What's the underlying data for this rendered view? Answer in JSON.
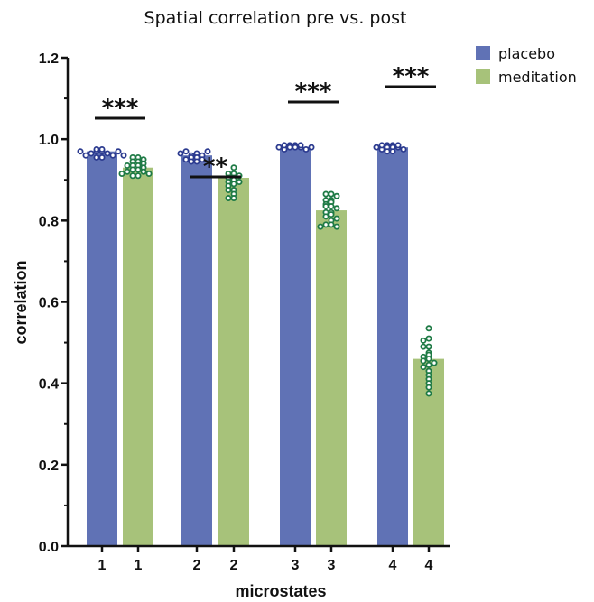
{
  "chart_data": {
    "type": "bar",
    "title": "Spatial correlation pre vs. post",
    "xlabel": "microstates",
    "ylabel": "correlation",
    "ylim": [
      0,
      1.2
    ],
    "yticks": [
      "0.0",
      "0.2",
      "0.4",
      "0.6",
      "0.8",
      "1.0",
      "1.2"
    ],
    "categories": [
      "1",
      "2",
      "3",
      "4"
    ],
    "series": [
      {
        "name": "placebo",
        "color": "#6072b5",
        "point_color": "#2b3a8f",
        "values": [
          0.97,
          0.96,
          0.98,
          0.98
        ],
        "points": [
          [
            0.97,
            0.97,
            0.965,
            0.965,
            0.96,
            0.96,
            0.97,
            0.97,
            0.975,
            0.975,
            0.955,
            0.955,
            0.96
          ],
          [
            0.965,
            0.96,
            0.96,
            0.955,
            0.955,
            0.95,
            0.95,
            0.97,
            0.97,
            0.965,
            0.945,
            0.945
          ],
          [
            0.985,
            0.985,
            0.98,
            0.98,
            0.98,
            0.975,
            0.975,
            0.985,
            0.985,
            0.98,
            0.98
          ],
          [
            0.985,
            0.985,
            0.98,
            0.98,
            0.98,
            0.975,
            0.975,
            0.985,
            0.985,
            0.98,
            0.97,
            0.97
          ]
        ]
      },
      {
        "name": "meditation",
        "color": "#a7c27a",
        "point_color": "#1e7a45",
        "values": [
          0.93,
          0.905,
          0.825,
          0.46
        ],
        "points": [
          [
            0.955,
            0.955,
            0.95,
            0.945,
            0.945,
            0.94,
            0.935,
            0.935,
            0.93,
            0.925,
            0.925,
            0.92,
            0.92,
            0.915,
            0.915,
            0.91,
            0.91,
            0.935
          ],
          [
            0.93,
            0.915,
            0.915,
            0.905,
            0.905,
            0.9,
            0.895,
            0.895,
            0.89,
            0.885,
            0.875,
            0.875,
            0.865,
            0.855,
            0.855,
            0.91
          ],
          [
            0.865,
            0.865,
            0.86,
            0.85,
            0.85,
            0.845,
            0.84,
            0.835,
            0.835,
            0.83,
            0.82,
            0.82,
            0.815,
            0.81,
            0.805,
            0.8,
            0.79,
            0.79,
            0.785,
            0.785
          ],
          [
            0.535,
            0.51,
            0.505,
            0.49,
            0.49,
            0.475,
            0.47,
            0.465,
            0.46,
            0.455,
            0.45,
            0.445,
            0.44,
            0.43,
            0.42,
            0.41,
            0.4,
            0.39,
            0.375
          ]
        ]
      }
    ],
    "significance": [
      "***",
      "**",
      "***",
      "***"
    ],
    "legend": {
      "position": "top-right",
      "entries": [
        "placebo",
        "meditation"
      ]
    },
    "grid": false
  }
}
